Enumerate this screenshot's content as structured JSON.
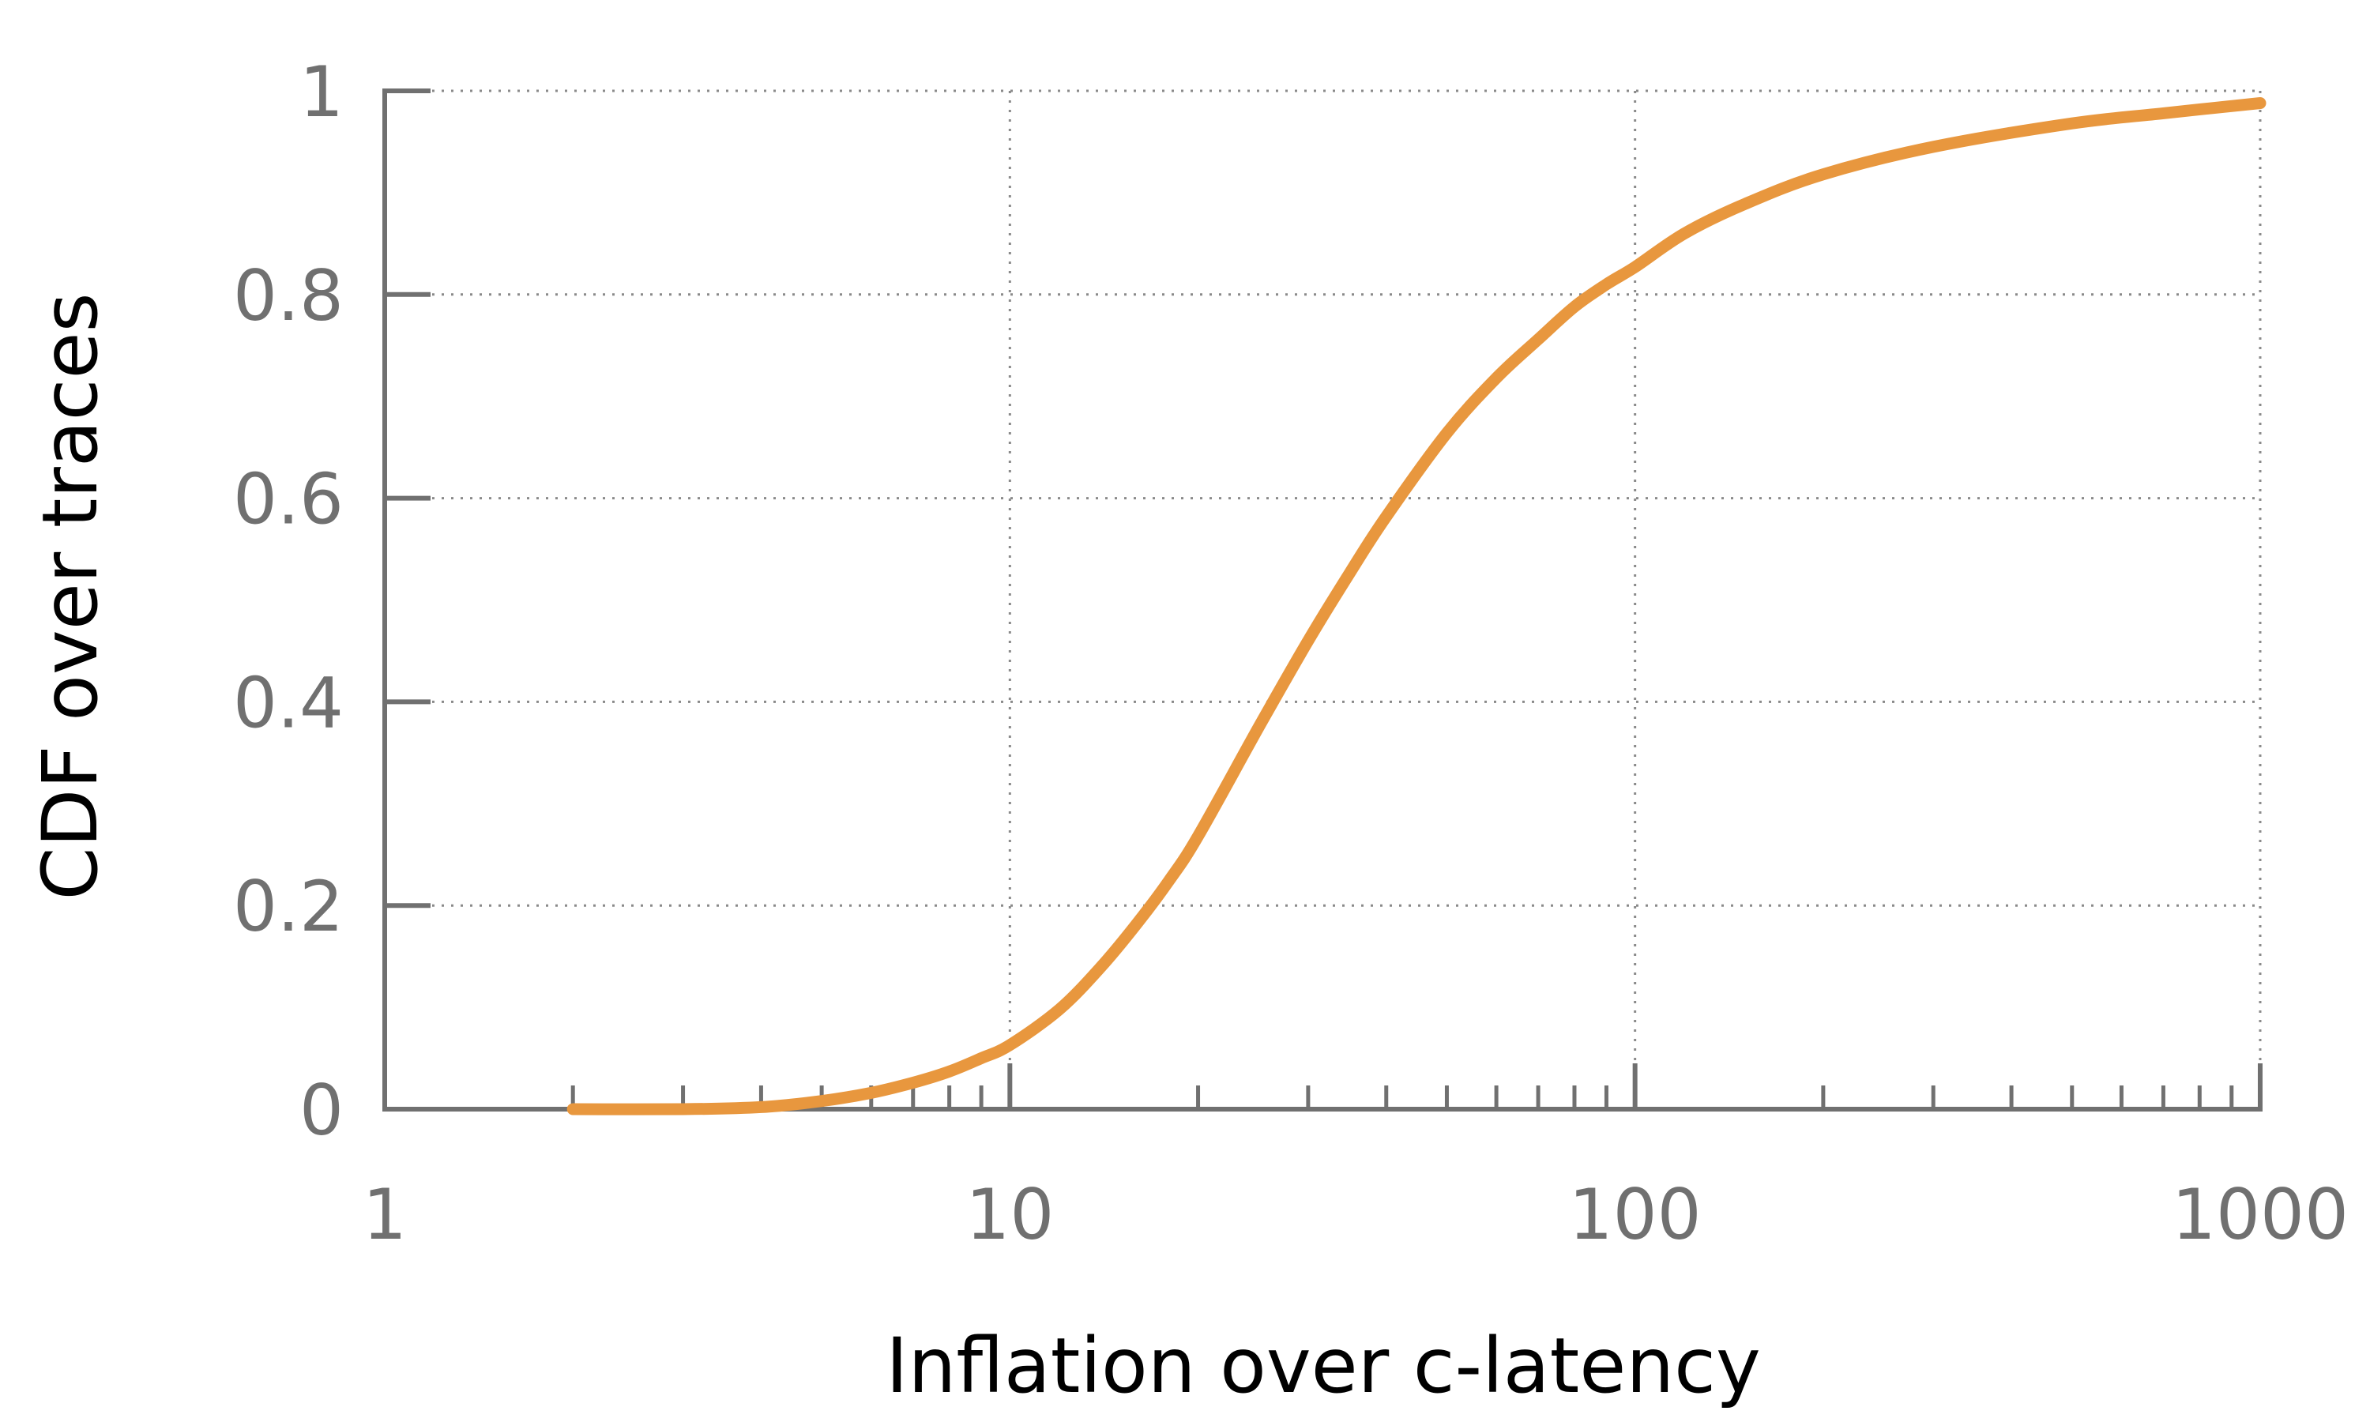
{
  "chart_data": {
    "type": "line",
    "title": "",
    "xlabel": "Inflation over c-latency",
    "ylabel": "CDF over traces",
    "xscale": "log",
    "xlim": [
      1,
      1000
    ],
    "ylim": [
      0,
      1
    ],
    "xticks": [
      1,
      10,
      100,
      1000
    ],
    "xtick_labels": [
      "1",
      "10",
      "100",
      "1000"
    ],
    "yticks": [
      0,
      0.2,
      0.4,
      0.6,
      0.8,
      1
    ],
    "ytick_labels": [
      "0",
      "0.2",
      "0.4",
      "0.6",
      "0.8",
      "1"
    ],
    "grid": true,
    "legend": "none",
    "series": [
      {
        "color": "#E8973E",
        "x": [
          2,
          3,
          4,
          5,
          6,
          7,
          8,
          9,
          10,
          12,
          14,
          16,
          18,
          20,
          25,
          30,
          35,
          40,
          50,
          60,
          70,
          80,
          90,
          100,
          120,
          150,
          200,
          300,
          500,
          700,
          1000
        ],
        "y": [
          0,
          0,
          0.002,
          0.008,
          0.016,
          0.026,
          0.037,
          0.05,
          0.063,
          0.098,
          0.14,
          0.183,
          0.225,
          0.268,
          0.375,
          0.46,
          0.527,
          0.582,
          0.664,
          0.718,
          0.756,
          0.788,
          0.81,
          0.827,
          0.86,
          0.889,
          0.918,
          0.945,
          0.968,
          0.978,
          0.988
        ]
      }
    ]
  }
}
